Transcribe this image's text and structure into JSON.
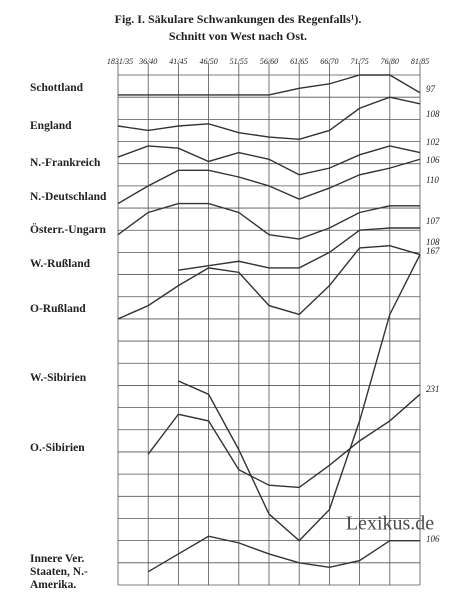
{
  "chart_data": {
    "type": "line",
    "title": "Fig. I.   Säkulare Schwankungen des Regenfalls¹).",
    "subtitle": "Schnitt von West nach Ost.",
    "categories": [
      "1831/35",
      "36/40",
      "41/45",
      "46/50",
      "51/55",
      "56/60",
      "61/65",
      "66/70",
      "71/75",
      "76/80",
      "81/85"
    ],
    "ylim": [
      0,
      23
    ],
    "yticks": [
      0,
      1,
      2,
      3,
      4,
      5,
      6,
      7,
      8,
      9,
      10,
      11,
      12,
      13,
      14,
      15,
      16,
      17,
      18,
      19,
      20,
      21,
      22,
      23
    ],
    "grid": true,
    "color": "#333333",
    "watermark": "Lexikus.de",
    "series": [
      {
        "name": "Schottland",
        "end_label": 97,
        "values": [
          22.1,
          22.1,
          22.1,
          22.1,
          22.1,
          22.1,
          22.4,
          22.6,
          23.0,
          23.0,
          22.2
        ]
      },
      {
        "name": "England",
        "end_label": 108,
        "values": [
          20.7,
          20.5,
          20.7,
          20.8,
          20.4,
          20.2,
          20.1,
          20.5,
          21.5,
          22.0,
          21.7
        ]
      },
      {
        "name": "N.-Frankreich",
        "end_label": 102,
        "values": [
          19.3,
          19.8,
          19.7,
          19.1,
          19.5,
          19.2,
          18.5,
          18.8,
          19.4,
          19.8,
          19.5
        ]
      },
      {
        "name": "N.-Deutschland",
        "end_label": 106,
        "values": [
          17.2,
          18.0,
          18.7,
          18.7,
          18.4,
          18.0,
          17.4,
          17.9,
          18.5,
          18.8,
          19.2
        ]
      },
      {
        "name": "Österr.-Ungarn",
        "end_label": 110,
        "values": [
          15.8,
          16.8,
          17.2,
          17.2,
          16.8,
          15.8,
          15.6,
          16.1,
          16.8,
          17.1,
          17.1
        ]
      },
      {
        "name": "W.-Rußland",
        "end_label": 107,
        "values": [
          null,
          null,
          14.2,
          14.4,
          14.6,
          14.3,
          14.3,
          15.0,
          16.0,
          16.1,
          16.1
        ]
      },
      {
        "name": "O-Rußland",
        "end_label": 108,
        "values": [
          12.0,
          12.6,
          13.5,
          14.3,
          14.1,
          12.6,
          12.2,
          13.5,
          15.2,
          15.3,
          14.9
        ]
      },
      {
        "name": "W.-Sibirien",
        "end_label": 167,
        "values": [
          null,
          null,
          9.2,
          8.6,
          6.1,
          3.2,
          2.0,
          3.4,
          7.4,
          12.2,
          14.9
        ]
      },
      {
        "name": "O.-Sibirien",
        "end_label": 231,
        "values": [
          null,
          5.9,
          7.7,
          7.4,
          5.2,
          4.5,
          4.4,
          5.4,
          6.5,
          7.4,
          8.6
        ]
      },
      {
        "name": "Innere Ver. Staaten, N.-Amerika.",
        "end_label": 106,
        "values": [
          null,
          0.6,
          1.4,
          2.2,
          1.9,
          1.4,
          1.0,
          0.8,
          1.1,
          2.0,
          2.0
        ]
      }
    ]
  }
}
